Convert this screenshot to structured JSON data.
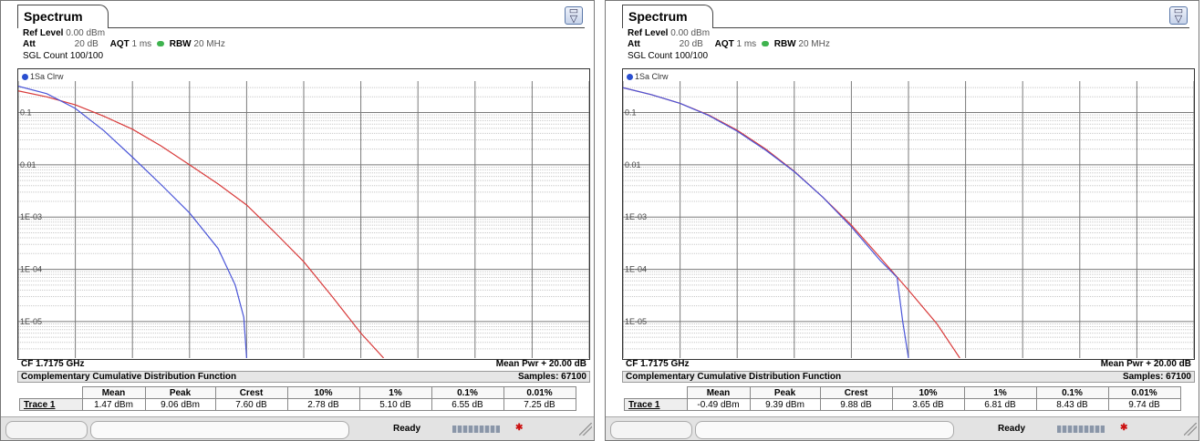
{
  "panels": [
    {
      "tab_label": "Spectrum",
      "ref_level_label": "Ref Level",
      "ref_level_value": "0.00 dBm",
      "att_label": "Att",
      "att_value": "20 dB",
      "aqt_label": "AQT",
      "aqt_value": "1 ms",
      "rbw_label": "RBW",
      "rbw_value": "20 MHz",
      "sgl_count": "SGL Count 100/100",
      "trace_label": "1Sa Clrw",
      "y_ticks": [
        "0.1",
        "0.01",
        "1E-03",
        "1E-04",
        "1E-05"
      ],
      "cf_label": "CF 1.7175 GHz",
      "mean_pwr_label": "Mean Pwr + 20.00 dB",
      "ccdf_title": "Complementary Cumulative Distribution Function",
      "samples_label": "Samples: 67100",
      "table": {
        "headers": [
          "",
          "Mean",
          "Peak",
          "Crest",
          "10%",
          "1%",
          "0.1%",
          "0.01%"
        ],
        "row": [
          "Trace 1",
          "1.47 dBm",
          "9.06 dBm",
          "7.60 dB",
          "2.78 dB",
          "5.10 dB",
          "6.55 dB",
          "7.25 dB"
        ]
      },
      "status_text": "Ready"
    },
    {
      "tab_label": "Spectrum",
      "ref_level_label": "Ref Level",
      "ref_level_value": "0.00 dBm",
      "att_label": "Att",
      "att_value": "20 dB",
      "aqt_label": "AQT",
      "aqt_value": "1 ms",
      "rbw_label": "RBW",
      "rbw_value": "20 MHz",
      "sgl_count": "SGL Count 100/100",
      "trace_label": "1Sa Clrw",
      "y_ticks": [
        "0.1",
        "0.01",
        "1E-03",
        "1E-04",
        "1E-05"
      ],
      "cf_label": "CF 1.7175 GHz",
      "mean_pwr_label": "Mean Pwr + 20.00 dB",
      "ccdf_title": "Complementary Cumulative Distribution Function",
      "samples_label": "Samples: 67100",
      "table": {
        "headers": [
          "",
          "Mean",
          "Peak",
          "Crest",
          "10%",
          "1%",
          "0.1%",
          "0.01%"
        ],
        "row": [
          "Trace 1",
          "-0.49 dBm",
          "9.39 dBm",
          "9.88 dB",
          "3.65 dB",
          "6.81 dB",
          "8.43 dB",
          "9.74 dB"
        ]
      },
      "status_text": "Ready"
    }
  ],
  "colors": {
    "measured_trace": "#4a55d8",
    "reference_trace": "#d83a3a",
    "grid_major": "#7a7a7a",
    "grid_minor": "#c8c8c8"
  },
  "chart_data": [
    {
      "type": "line",
      "y_scale": "log",
      "ylim": [
        2e-06,
        0.4
      ],
      "xlim": [
        0,
        20
      ],
      "xlabel": "",
      "ylabel": "",
      "grid": true,
      "series": [
        {
          "x": [
            0,
            1,
            2,
            3,
            4,
            5,
            6,
            7,
            7.6,
            7.9,
            8.0
          ],
          "y": [
            0.32,
            0.23,
            0.12,
            0.045,
            0.014,
            0.0042,
            0.0012,
            0.00025,
            5e-05,
            1.2e-05,
            2e-06
          ]
        },
        {
          "x": [
            0,
            1,
            2,
            3,
            4,
            5,
            6,
            7,
            8,
            9,
            10,
            11,
            12,
            12.8
          ],
          "y": [
            0.26,
            0.2,
            0.14,
            0.085,
            0.048,
            0.023,
            0.01,
            0.0043,
            0.0017,
            0.0005,
            0.00014,
            3e-05,
            6e-06,
            2e-06
          ]
        }
      ]
    },
    {
      "type": "line",
      "y_scale": "log",
      "ylim": [
        2e-06,
        0.4
      ],
      "xlim": [
        0,
        20
      ],
      "xlabel": "",
      "ylabel": "",
      "grid": true,
      "series": [
        {
          "x": [
            0,
            1,
            2,
            3,
            4,
            5,
            6,
            7,
            8,
            9,
            9.6,
            9.8,
            10.0
          ],
          "y": [
            0.3,
            0.22,
            0.15,
            0.088,
            0.044,
            0.019,
            0.0074,
            0.0024,
            0.00065,
            0.00015,
            7e-05,
            1e-05,
            2e-06
          ]
        },
        {
          "x": [
            0,
            1,
            2,
            3,
            4,
            5,
            6,
            7,
            8,
            9,
            10,
            11,
            11.8
          ],
          "y": [
            0.3,
            0.22,
            0.15,
            0.09,
            0.046,
            0.02,
            0.0075,
            0.0024,
            0.0007,
            0.00017,
            4e-05,
            9e-06,
            2e-06
          ]
        }
      ]
    }
  ]
}
